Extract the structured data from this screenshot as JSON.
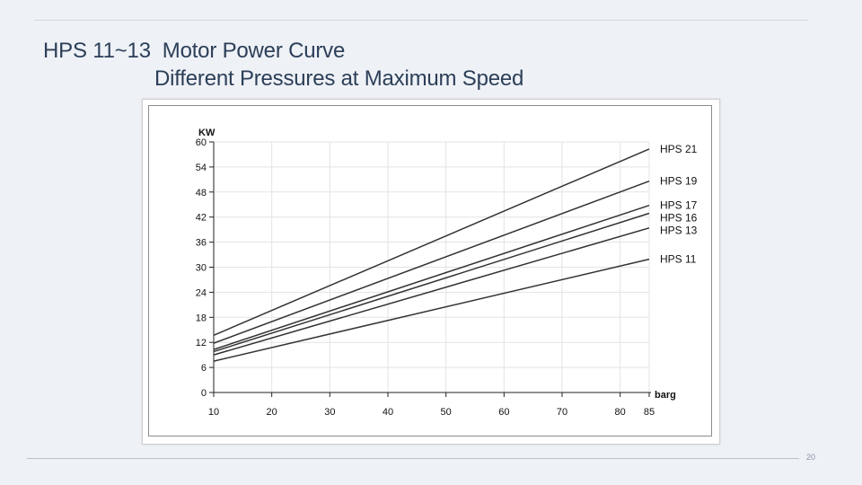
{
  "slide": {
    "title_line1": "HPS 11~13  Motor Power Curve",
    "title_line2": "Different Pressures at Maximum Speed",
    "page_number": "20"
  },
  "chart_data": {
    "type": "line",
    "title": "HPS 11~13  Motor Power Curve Different Pressures at Maximum Speed",
    "xlabel": "barg",
    "ylabel": "KW",
    "x": [
      10,
      85
    ],
    "xlim": [
      10,
      85
    ],
    "ylim": [
      0,
      60
    ],
    "x_ticks": [
      10,
      20,
      30,
      40,
      50,
      60,
      70,
      80,
      85
    ],
    "y_ticks": [
      0,
      6,
      12,
      18,
      24,
      30,
      36,
      42,
      48,
      54,
      60
    ],
    "grid": true,
    "legend": "right (labels at line ends)",
    "series": [
      {
        "name": "HPS 21",
        "values": [
          13.7,
          58.3
        ]
      },
      {
        "name": "HPS 19",
        "values": [
          11.8,
          50.6
        ]
      },
      {
        "name": "HPS 17",
        "values": [
          10.3,
          44.8
        ]
      },
      {
        "name": "HPS 16",
        "values": [
          9.8,
          42.9
        ]
      },
      {
        "name": "HPS 13",
        "values": [
          9.0,
          39.4
        ]
      },
      {
        "name": "HPS 11",
        "values": [
          7.5,
          31.9
        ]
      }
    ]
  }
}
